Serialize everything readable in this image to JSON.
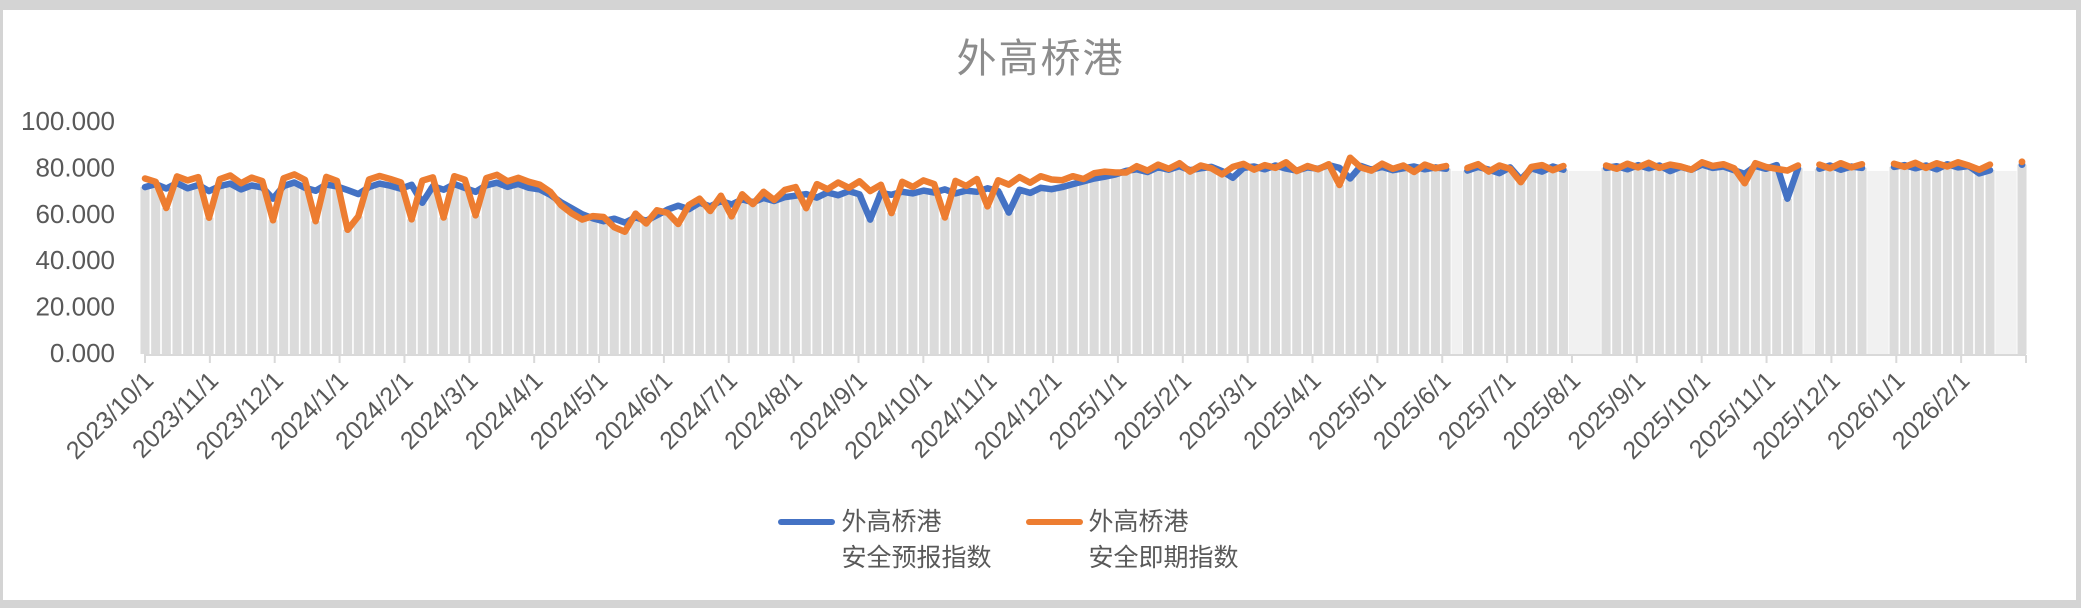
{
  "colors": {
    "page_background": "#d4d4d4",
    "canvas": "#ffffff",
    "bars": "#dbdbdb",
    "gap_band": "#f1f1f1",
    "axis": "#d9d9d9",
    "tick_text": "#595959",
    "title_text": "#8c8c8c",
    "series_blue": "#4472C4",
    "series_orange": "#ED7D31"
  },
  "legend": {
    "entries": [
      {
        "line1": "外高桥港",
        "line2": "安全预报指数",
        "color": "#4472C4"
      },
      {
        "line1": "外高桥港",
        "line2": "安全即期指数",
        "color": "#ED7D31"
      }
    ]
  },
  "chart_data": {
    "type": "line",
    "title": "外高桥港",
    "xlabel": "",
    "ylabel": "",
    "ylim": [
      0,
      100
    ],
    "grid": false,
    "legend_position": "bottom",
    "y_tick_labels": [
      "0.000",
      "20.000",
      "40.000",
      "60.000",
      "80.000",
      "100.000"
    ],
    "x_tick_labels": [
      "2023/10/1",
      "2023/11/1",
      "2023/12/1",
      "2024/1/1",
      "2024/2/1",
      "2024/3/1",
      "2024/4/1",
      "2024/5/1",
      "2024/6/1",
      "2024/7/1",
      "2024/8/1",
      "2024/9/1",
      "2024/10/1",
      "2024/11/1",
      "2024/12/1",
      "2025/1/1",
      "2025/2/1",
      "2025/3/1",
      "2025/4/1",
      "2025/5/1",
      "2025/6/1",
      "2025/7/1",
      "2025/8/1",
      "2025/9/1",
      "2025/10/1",
      "2025/11/1",
      "2025/12/1",
      "2026/1/1",
      "2026/2/1"
    ],
    "x_start": "2023/10/1",
    "x_step_days": 5,
    "background_columns": {
      "fill": "#dbdbdb",
      "note": "gray column behind each data point up to the lower of the two series; light bands where data is missing"
    },
    "series": [
      {
        "name": "外高桥港 安全预报指数",
        "color": "#4472C4",
        "values": [
          71.5,
          72.8,
          70.9,
          73.2,
          71.0,
          72.4,
          69.8,
          71.9,
          73.0,
          70.5,
          72.2,
          71.4,
          66.5,
          72.0,
          73.5,
          71.2,
          69.9,
          72.6,
          71.8,
          70.2,
          68.5,
          71.5,
          73.0,
          72.1,
          70.8,
          72.5,
          64.8,
          71.9,
          70.4,
          72.8,
          71.1,
          69.5,
          72.3,
          73.4,
          71.6,
          72.9,
          71.2,
          70.5,
          68.2,
          65.0,
          62.4,
          59.8,
          58.0,
          56.8,
          57.9,
          56.2,
          58.5,
          57.0,
          59.4,
          61.8,
          63.5,
          62.0,
          64.8,
          63.2,
          65.5,
          64.0,
          66.2,
          65.0,
          66.8,
          65.5,
          67.2,
          67.8,
          68.5,
          67.0,
          69.2,
          68.0,
          69.8,
          68.4,
          57.5,
          69.0,
          68.2,
          69.5,
          68.8,
          70.0,
          69.2,
          70.5,
          68.8,
          70.0,
          69.5,
          71.0,
          69.8,
          60.5,
          70.4,
          69.0,
          71.2,
          70.6,
          71.5,
          72.8,
          74.0,
          75.2,
          76.0,
          77.0,
          78.5,
          79.2,
          78.0,
          80.1,
          79.0,
          80.5,
          78.8,
          79.6,
          80.2,
          78.4,
          75.5,
          79.8,
          80.4,
          79.2,
          80.8,
          79.5,
          78.6,
          80.0,
          79.4,
          81.0,
          79.8,
          75.2,
          80.6,
          79.0,
          80.2,
          78.8,
          79.6,
          80.4,
          79.2,
          80.0,
          79.4,
          null,
          78.6,
          80.2,
          79.0,
          77.5,
          80.0,
          74.8,
          79.6,
          78.2,
          80.4,
          79.0,
          null,
          null,
          null,
          79.8,
          80.5,
          79.2,
          81.0,
          79.6,
          80.8,
          78.4,
          80.2,
          79.0,
          81.2,
          79.8,
          80.4,
          78.8,
          77.2,
          80.6,
          79.4,
          81.0,
          66.5,
          79.6,
          null,
          79.4,
          80.8,
          79.0,
          80.4,
          79.8,
          null,
          null,
          80.2,
          81.0,
          79.6,
          80.8,
          79.2,
          81.4,
          80.0,
          80.6,
          77.4,
          78.8,
          null,
          null,
          81.2
        ]
      },
      {
        "name": "外高桥港 安全即期指数",
        "color": "#ED7D31",
        "values": [
          75.2,
          73.8,
          62.5,
          76.1,
          74.4,
          75.8,
          58.3,
          74.9,
          76.5,
          73.2,
          75.6,
          74.1,
          57.2,
          75.3,
          77.0,
          74.6,
          56.8,
          75.9,
          74.2,
          53.1,
          58.9,
          74.8,
          76.3,
          75.0,
          73.5,
          57.6,
          74.3,
          75.7,
          58.4,
          76.2,
          74.7,
          59.3,
          75.4,
          76.8,
          74.0,
          75.5,
          73.8,
          72.6,
          69.5,
          63.8,
          60.2,
          57.5,
          59.0,
          58.6,
          54.2,
          52.3,
          60.1,
          55.8,
          61.5,
          60.4,
          55.6,
          63.8,
          66.5,
          61.2,
          67.8,
          58.9,
          68.4,
          64.2,
          69.5,
          66.0,
          70.3,
          71.5,
          62.4,
          72.8,
          70.6,
          73.5,
          71.2,
          74.0,
          69.8,
          72.5,
          60.3,
          73.8,
          71.6,
          74.4,
          72.8,
          58.4,
          74.2,
          72.0,
          75.0,
          63.2,
          74.5,
          72.6,
          75.8,
          73.4,
          76.2,
          74.8,
          74.5,
          76.2,
          75.0,
          77.5,
          78.2,
          77.8,
          77.8,
          80.5,
          78.6,
          81.2,
          79.4,
          81.8,
          78.2,
          80.8,
          79.6,
          77.0,
          80.2,
          81.5,
          79.0,
          81.0,
          79.8,
          82.2,
          78.4,
          80.6,
          79.2,
          81.4,
          72.4,
          84.2,
          80.0,
          78.6,
          81.6,
          79.4,
          80.8,
          78.0,
          81.2,
          79.6,
          80.6,
          null,
          79.8,
          81.4,
          78.2,
          80.8,
          79.4,
          73.6,
          80.2,
          81.0,
          78.8,
          80.6,
          null,
          null,
          null,
          80.8,
          79.4,
          81.6,
          80.0,
          82.0,
          79.8,
          81.2,
          80.4,
          79.0,
          82.2,
          80.6,
          81.4,
          79.6,
          73.2,
          81.8,
          80.2,
          79.4,
          78.6,
          80.8,
          null,
          81.2,
          79.6,
          81.8,
          80.0,
          81.4,
          null,
          null,
          81.6,
          80.2,
          82.0,
          79.8,
          81.8,
          80.4,
          82.2,
          80.8,
          79.0,
          81.2,
          null,
          null,
          82.4
        ]
      }
    ]
  }
}
